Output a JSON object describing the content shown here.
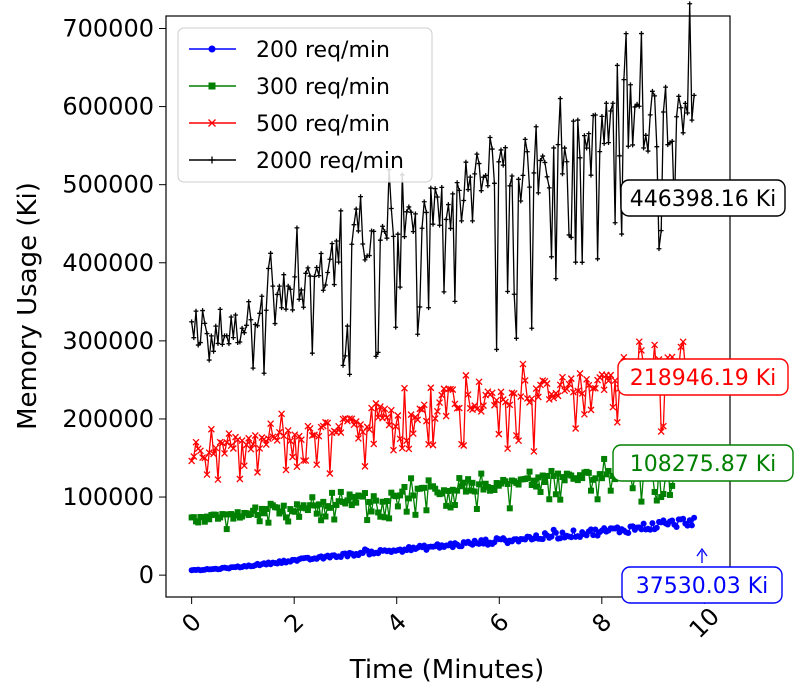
{
  "chart_data": {
    "type": "line",
    "title": "",
    "xlabel": "Time (Minutes)",
    "ylabel": "Memory Usage (Ki)",
    "xlim": [
      -0.5,
      10.5
    ],
    "ylim": [
      -28000,
      716000
    ],
    "xticks": [
      0,
      2,
      4,
      6,
      8,
      10
    ],
    "xtick_labels": [
      "0",
      "2",
      "4",
      "6",
      "8",
      "10"
    ],
    "yticks": [
      0,
      100000,
      200000,
      300000,
      400000,
      500000,
      600000,
      700000
    ],
    "ytick_labels": [
      "0",
      "100000",
      "200000",
      "300000",
      "400000",
      "500000",
      "600000",
      "700000"
    ],
    "grid": false,
    "legend_position": "top-left",
    "series": [
      {
        "name": "200 req/min",
        "color": "#0000ff",
        "marker": "circle",
        "x": [
          0,
          0.5,
          1,
          1.5,
          2,
          2.5,
          3,
          3.5,
          4,
          4.5,
          5,
          5.5,
          6,
          6.5,
          7,
          7.5,
          8,
          8.5,
          9,
          9.5,
          9.8
        ],
        "y": [
          6000,
          8000,
          11000,
          15000,
          19000,
          22000,
          26000,
          29000,
          32000,
          35000,
          38000,
          41000,
          44000,
          47000,
          50000,
          53000,
          56000,
          59000,
          63000,
          67000,
          70000
        ],
        "annotation": "37530.03 Ki"
      },
      {
        "name": "300 req/min",
        "color": "#008000",
        "marker": "square",
        "x": [
          0,
          0.5,
          1,
          1.5,
          2,
          2.5,
          3,
          3.5,
          4,
          4.5,
          5,
          5.5,
          6,
          6.5,
          7,
          7.5,
          8,
          8.5,
          9,
          9.5,
          9.8
        ],
        "y": [
          70000,
          74000,
          78000,
          82000,
          86000,
          90000,
          94000,
          98000,
          102000,
          106000,
          110000,
          113000,
          116000,
          119000,
          122000,
          125000,
          128000,
          131000,
          133000,
          135000,
          137000
        ],
        "annotation": "108275.87 Ki"
      },
      {
        "name": "500 req/min",
        "color": "#ff0000",
        "marker": "x",
        "x": [
          0,
          0.5,
          1,
          1.5,
          2,
          2.5,
          3,
          3.5,
          4,
          4.5,
          5,
          5.5,
          6,
          6.5,
          7,
          7.5,
          8,
          8.5,
          9,
          9.5,
          9.8
        ],
        "y": [
          155000,
          160000,
          166000,
          172000,
          178000,
          184000,
          190000,
          196000,
          202000,
          208000,
          214000,
          220000,
          226000,
          232000,
          238000,
          244000,
          250000,
          256000,
          262000,
          268000,
          272000
        ],
        "annotation": "218946.19 Ki"
      },
      {
        "name": "2000 req/min",
        "color": "#000000",
        "marker": "plus",
        "x": [
          0,
          0.5,
          1,
          1.5,
          2,
          2.5,
          3,
          3.5,
          4,
          4.5,
          5,
          5.5,
          6,
          6.5,
          7,
          7.5,
          8,
          8.5,
          9,
          9.5,
          9.8
        ],
        "y": [
          280000,
          300000,
          322000,
          344000,
          365000,
          385000,
          405000,
          425000,
          443000,
          460000,
          476000,
          490000,
          505000,
          518000,
          530000,
          545000,
          560000,
          575000,
          590000,
          605000,
          615000
        ],
        "annotation": "446398.16 Ki"
      }
    ]
  }
}
